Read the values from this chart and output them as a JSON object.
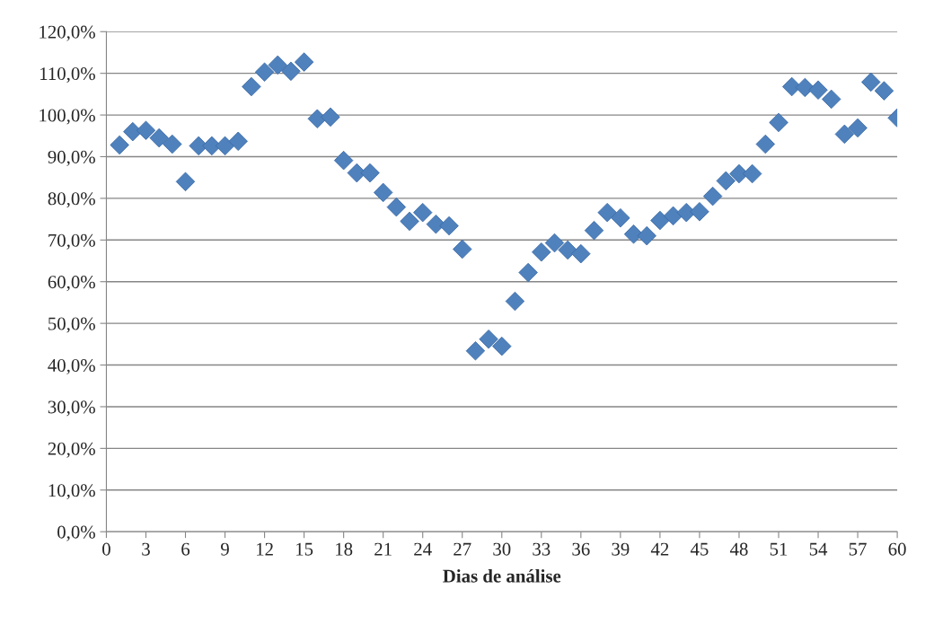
{
  "chart_data": {
    "type": "scatter",
    "xlabel": "Dias de análise",
    "x": [
      1,
      2,
      3,
      4,
      5,
      6,
      7,
      8,
      9,
      10,
      11,
      12,
      13,
      14,
      15,
      16,
      17,
      18,
      19,
      20,
      21,
      22,
      23,
      24,
      25,
      26,
      27,
      28,
      29,
      30,
      31,
      32,
      33,
      34,
      35,
      36,
      37,
      38,
      39,
      40,
      41,
      42,
      43,
      44,
      45,
      46,
      47,
      48,
      49,
      50,
      51,
      52,
      53,
      54,
      55,
      56,
      57,
      58,
      59,
      60
    ],
    "series": [
      {
        "color": "#4f81bd",
        "values": [
          92.8,
          96.0,
          96.3,
          94.5,
          93.0,
          84.0,
          92.6,
          92.6,
          92.6,
          93.7,
          106.8,
          110.3,
          112.0,
          110.5,
          112.7,
          99.1,
          99.5,
          89.1,
          86.1,
          86.1,
          81.4,
          77.9,
          74.5,
          76.6,
          73.8,
          73.4,
          67.8,
          43.4,
          46.2,
          44.5,
          55.3,
          62.2,
          67.1,
          69.3,
          67.6,
          66.7,
          72.3,
          76.6,
          75.3,
          71.4,
          71.0,
          74.7,
          75.8,
          76.6,
          76.8,
          80.5,
          84.2,
          85.9,
          85.9,
          93.0,
          98.2,
          106.8,
          106.6,
          106.0,
          103.8,
          95.4,
          96.9,
          107.9,
          105.8,
          99.3
        ]
      }
    ],
    "marker": "diamond",
    "grid": "y",
    "legend": false,
    "xlim": [
      0,
      60
    ],
    "xticks": [
      0,
      3,
      6,
      9,
      12,
      15,
      18,
      21,
      24,
      27,
      30,
      33,
      36,
      39,
      42,
      45,
      48,
      51,
      54,
      57,
      60
    ],
    "ylim": [
      0,
      120
    ],
    "yticks": [
      {
        "value": 0,
        "label": "0,0%"
      },
      {
        "value": 10,
        "label": "10,0%"
      },
      {
        "value": 20,
        "label": "20,0%"
      },
      {
        "value": 30,
        "label": "30,0%"
      },
      {
        "value": 40,
        "label": "40,0%"
      },
      {
        "value": 50,
        "label": "50,0%"
      },
      {
        "value": 60,
        "label": "60,0%"
      },
      {
        "value": 70,
        "label": "70,0%"
      },
      {
        "value": 80,
        "label": "80,0%"
      },
      {
        "value": 90,
        "label": "90,0%"
      },
      {
        "value": 100,
        "label": "100,0%"
      },
      {
        "value": 110,
        "label": "110,0%"
      },
      {
        "value": 120,
        "label": "120,0%"
      }
    ]
  }
}
